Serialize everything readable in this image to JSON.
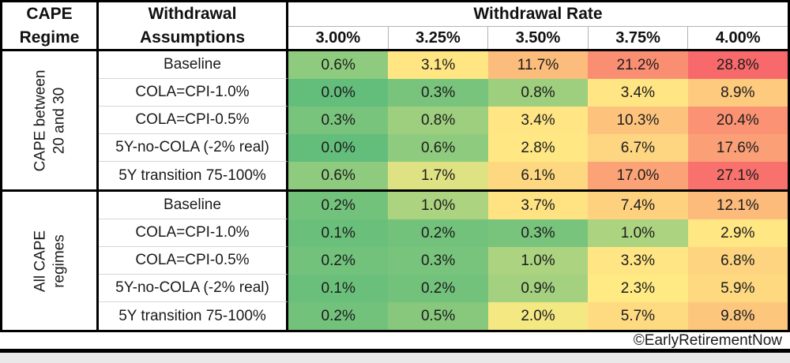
{
  "page": {
    "background": "#ffffff",
    "edge_color": "#e9e9e9"
  },
  "header": {
    "cape_regime": {
      "line1": "CAPE",
      "line2": "Regime"
    },
    "withdrawal_assumptions": {
      "line1": "Withdrawal",
      "line2": "Assumptions"
    },
    "withdrawal_rate_label": "Withdrawal Rate"
  },
  "footer": {
    "copyright": "©EarlyRetirementNow"
  },
  "chart_data": {
    "type": "heatmap",
    "title": "Withdrawal Rate",
    "columns": [
      "3.00%",
      "3.25%",
      "3.50%",
      "3.75%",
      "4.00%"
    ],
    "row_header": "Withdrawal Assumptions",
    "group_header": "CAPE Regime",
    "unit": "%",
    "value_format": "one-decimal-percent",
    "legend_position": "none",
    "grid": "excel-borders",
    "groups": [
      {
        "label_lines": [
          "CAPE between",
          "20 and 30"
        ],
        "rows": [
          {
            "label": "Baseline",
            "values": [
              0.6,
              3.1,
              11.7,
              21.2,
              28.8
            ]
          },
          {
            "label": "COLA=CPI-1.0%",
            "values": [
              0.0,
              0.3,
              0.8,
              3.4,
              8.9
            ]
          },
          {
            "label": "COLA=CPI-0.5%",
            "values": [
              0.3,
              0.8,
              3.4,
              10.3,
              20.4
            ]
          },
          {
            "label": "5Y-no-COLA (-2% real)",
            "values": [
              0.0,
              0.6,
              2.8,
              6.7,
              17.6
            ]
          },
          {
            "label": "5Y transition 75-100%",
            "values": [
              0.6,
              1.7,
              6.1,
              17.0,
              27.1
            ]
          }
        ]
      },
      {
        "label_lines": [
          "All CAPE",
          "regimes"
        ],
        "rows": [
          {
            "label": "Baseline",
            "values": [
              0.2,
              1.0,
              3.7,
              7.4,
              12.1
            ]
          },
          {
            "label": "COLA=CPI-1.0%",
            "values": [
              0.1,
              0.2,
              0.3,
              1.0,
              2.9
            ]
          },
          {
            "label": "COLA=CPI-0.5%",
            "values": [
              0.2,
              0.3,
              1.0,
              3.3,
              6.8
            ]
          },
          {
            "label": "5Y-no-COLA (-2% real)",
            "values": [
              0.1,
              0.2,
              0.9,
              2.3,
              5.9
            ]
          },
          {
            "label": "5Y transition 75-100%",
            "values": [
              0.2,
              0.5,
              2.0,
              5.7,
              9.8
            ]
          }
        ]
      }
    ],
    "color_scale": {
      "min_value": 0.0,
      "mid_value": 2.15,
      "max_value": 28.8,
      "min_color": "#63BE7B",
      "mid_color": "#FFEB84",
      "max_color": "#F8696B"
    }
  }
}
